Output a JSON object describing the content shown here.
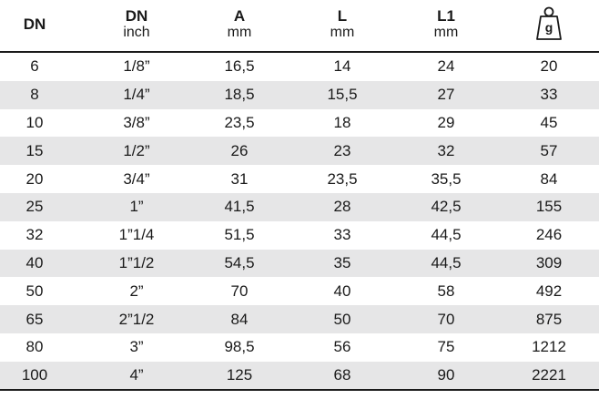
{
  "table": {
    "header": [
      {
        "title": "DN"
      },
      {
        "title": "DN",
        "unit": "inch"
      },
      {
        "title": "A",
        "unit": "mm"
      },
      {
        "title": "L",
        "unit": "mm"
      },
      {
        "title": "L1",
        "unit": "mm"
      },
      {
        "title": "g"
      }
    ],
    "rows": [
      [
        "6",
        "1/8”",
        "16,5",
        "14",
        "24",
        "20"
      ],
      [
        "8",
        "1/4”",
        "18,5",
        "15,5",
        "27",
        "33"
      ],
      [
        "10",
        "3/8”",
        "23,5",
        "18",
        "29",
        "45"
      ],
      [
        "15",
        "1/2”",
        "26",
        "23",
        "32",
        "57"
      ],
      [
        "20",
        "3/4”",
        "31",
        "23,5",
        "35,5",
        "84"
      ],
      [
        "25",
        "1”",
        "41,5",
        "28",
        "42,5",
        "155"
      ],
      [
        "32",
        "1”1/4",
        "51,5",
        "33",
        "44,5",
        "246"
      ],
      [
        "40",
        "1”1/2",
        "54,5",
        "35",
        "44,5",
        "309"
      ],
      [
        "50",
        "2”",
        "70",
        "40",
        "58",
        "492"
      ],
      [
        "65",
        "2”1/2",
        "84",
        "50",
        "70",
        "875"
      ],
      [
        "80",
        "3”",
        "98,5",
        "56",
        "75",
        "1212"
      ],
      [
        "100",
        "4”",
        "125",
        "68",
        "90",
        "2221"
      ]
    ]
  }
}
